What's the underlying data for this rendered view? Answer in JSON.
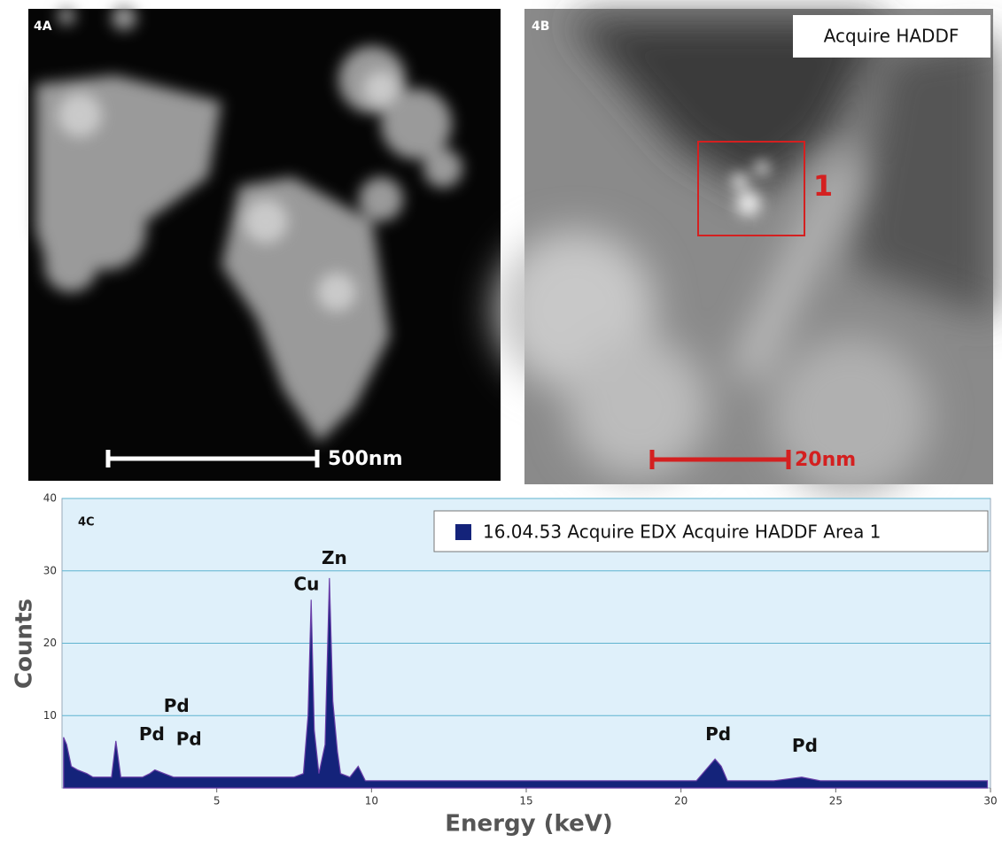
{
  "panels": [
    {
      "label": "4A",
      "scale_bar": "500nm"
    },
    {
      "label": "4B",
      "caption": "Acquire HADDF",
      "region_label": "1",
      "scale_bar": "20nm"
    }
  ],
  "chart_data": {
    "type": "area",
    "panel_label": "4C",
    "xlabel": "Energy (keV)",
    "ylabel": "Counts",
    "xlim": [
      0,
      30
    ],
    "ylim": [
      0,
      40
    ],
    "xticks": [
      5,
      10,
      15,
      20,
      25,
      30
    ],
    "yticks": [
      10,
      20,
      30,
      40
    ],
    "grid": true,
    "legend": "top-right",
    "series": [
      {
        "name": "16.04.53 Acquire EDX Acquire HADDF Area 1",
        "color": "#14237a",
        "x": [
          0.05,
          0.15,
          0.3,
          0.5,
          0.8,
          1.0,
          1.3,
          1.6,
          1.74,
          1.9,
          2.2,
          2.6,
          2.84,
          3.0,
          3.3,
          3.6,
          4.0,
          4.5,
          5.0,
          5.5,
          6.0,
          6.5,
          7.0,
          7.5,
          7.8,
          7.95,
          8.05,
          8.15,
          8.3,
          8.5,
          8.64,
          8.75,
          8.9,
          9.0,
          9.3,
          9.57,
          9.8,
          10.5,
          11.5,
          12.5,
          13.5,
          14.5,
          15.5,
          16.5,
          17.5,
          18.5,
          19.5,
          20.5,
          20.9,
          21.1,
          21.3,
          21.5,
          22.0,
          23.0,
          23.9,
          24.5,
          25.5,
          26.5,
          27.5,
          28.5,
          29.5,
          29.9
        ],
        "values": [
          7,
          6,
          3,
          2.5,
          2,
          1.5,
          1.5,
          1.5,
          6.5,
          1.5,
          1.5,
          1.5,
          2,
          2.5,
          2,
          1.5,
          1.5,
          1.5,
          1.5,
          1.5,
          1.5,
          1.5,
          1.5,
          1.5,
          2,
          10,
          26,
          8,
          2,
          6,
          29,
          12,
          5,
          2,
          1.5,
          3,
          1,
          1,
          1,
          1,
          1,
          1,
          1,
          1,
          1,
          1,
          1,
          1,
          3,
          4,
          3,
          1,
          1,
          1,
          1.5,
          1,
          1,
          1,
          1,
          1,
          1,
          1
        ]
      }
    ],
    "annotations": [
      {
        "text": "Cu",
        "x": 7.9,
        "y": 28
      },
      {
        "text": "Zn",
        "x": 8.8,
        "y": 31.6
      },
      {
        "text": "Pd",
        "x": 3.7,
        "y": 11.2
      },
      {
        "text": "Pd",
        "x": 2.9,
        "y": 7.3
      },
      {
        "text": "Pd",
        "x": 4.1,
        "y": 6.6
      },
      {
        "text": "Pd",
        "x": 21.2,
        "y": 7.3
      },
      {
        "text": "Pd",
        "x": 24.0,
        "y": 5.7
      }
    ]
  }
}
